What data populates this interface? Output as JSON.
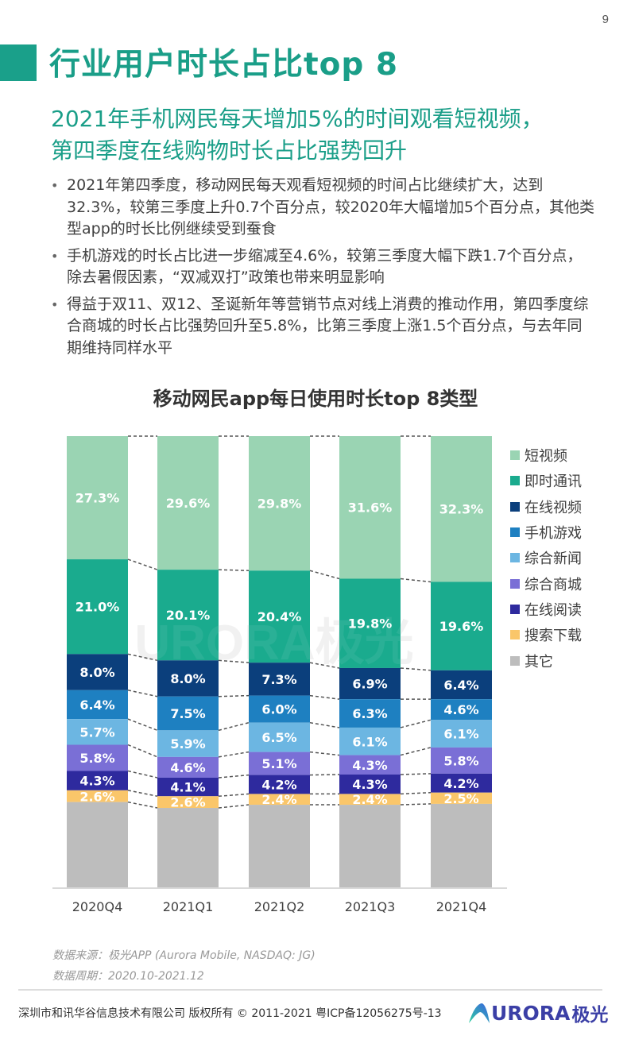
{
  "page_number": "9",
  "title": "行业用户时长占比top 8",
  "subtitle_lines": [
    "2021年手机网民每天增加5%的时间观看短视频，",
    "第四季度在线购物时长占比强势回升"
  ],
  "bullets": [
    "2021年第四季度，移动网民每天观看短视频的时间占比继续扩大，达到32.3%，较第三季度上升0.7个百分点，较2020年大幅增加5个百分点，其他类型app的时长比例继续受到蚕食",
    "手机游戏的时长占比进一步缩减至4.6%，较第三季度大幅下跌1.7个百分点，除去暑假因素，“双减双打”政策也带来明显影响",
    "得益于双11、双12、圣诞新年等营销节点对线上消费的推动作用，第四季度综合商城的时长占比强势回升至5.8%，比第三季度上涨1.5个百分点，与去年同期维持同样水平"
  ],
  "bullet_icon": "bullet-dot-icon",
  "watermark": "URORA极光",
  "chart_data": {
    "type": "bar",
    "stacked": true,
    "title": "移动网民app每日使用时长top 8类型",
    "xlabel": "",
    "ylabel": "",
    "ylim": [
      0,
      100
    ],
    "grid": false,
    "legend_position": "right",
    "categories": [
      "2020Q4",
      "2021Q1",
      "2021Q2",
      "2021Q3",
      "2021Q4"
    ],
    "series": [
      {
        "name": "短视频",
        "color": "#9ad4b3",
        "values": [
          27.3,
          29.6,
          29.8,
          31.6,
          32.3
        ],
        "labels": [
          "27.3%",
          "29.6%",
          "29.8%",
          "31.6%",
          "32.3%"
        ]
      },
      {
        "name": "即时通讯",
        "color": "#1aab8e",
        "values": [
          21.0,
          20.1,
          20.4,
          19.8,
          19.6
        ],
        "labels": [
          "21.0%",
          "20.1%",
          "20.4%",
          "19.8%",
          "19.6%"
        ]
      },
      {
        "name": "在线视频",
        "color": "#0b3f7c",
        "values": [
          8.0,
          8.0,
          7.3,
          6.9,
          6.4
        ],
        "labels": [
          "8.0%",
          "8.0%",
          "7.3%",
          "6.9%",
          "6.4%"
        ]
      },
      {
        "name": "手机游戏",
        "color": "#1e80c1",
        "values": [
          6.4,
          7.5,
          6.0,
          6.3,
          4.6
        ],
        "labels": [
          "6.4%",
          "7.5%",
          "6.0%",
          "6.3%",
          "4.6%"
        ]
      },
      {
        "name": "综合新闻",
        "color": "#6cb6e2",
        "values": [
          5.7,
          5.9,
          6.5,
          6.1,
          6.1
        ],
        "labels": [
          "5.7%",
          "5.9%",
          "6.5%",
          "6.1%",
          "6.1%"
        ]
      },
      {
        "name": "综合商城",
        "color": "#7a6fd6",
        "values": [
          5.8,
          4.6,
          5.1,
          4.3,
          5.8
        ],
        "labels": [
          "5.8%",
          "4.6%",
          "5.1%",
          "4.3%",
          "5.8%"
        ]
      },
      {
        "name": "在线阅读",
        "color": "#2e2a9e",
        "values": [
          4.3,
          4.1,
          4.2,
          4.3,
          4.2
        ],
        "labels": [
          "4.3%",
          "4.1%",
          "4.2%",
          "4.3%",
          "4.2%"
        ]
      },
      {
        "name": "搜索下载",
        "color": "#fac66a",
        "values": [
          2.6,
          2.6,
          2.4,
          2.4,
          2.5
        ],
        "labels": [
          "2.6%",
          "2.6%",
          "2.4%",
          "2.4%",
          "2.5%"
        ]
      },
      {
        "name": "其它",
        "color": "#bdbdbd",
        "values": [
          18.9,
          17.6,
          18.3,
          18.3,
          18.5
        ],
        "labels": []
      }
    ]
  },
  "source": {
    "line1": "数据来源：极光APP (Aurora Mobile, NASDAQ: JG)",
    "line2": "数据周期：2020.10-2021.12"
  },
  "footer": {
    "copyright": "深圳市和讯华谷信息技术有限公司 版权所有 © 2011-2021 粤ICP备12056275号-13",
    "logo_text": "URORA",
    "logo_cn": "极光",
    "logo_icon": "aurora-logo-icon"
  },
  "colors": {
    "accent": "#1a9e88",
    "logo": "#3b3fa6"
  }
}
